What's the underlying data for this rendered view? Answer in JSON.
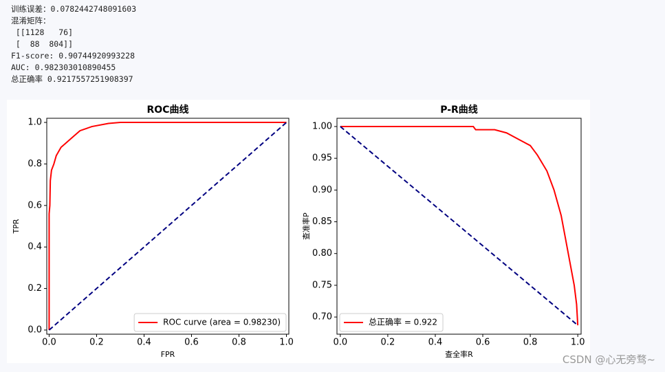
{
  "console": [
    "训练误差：0.0782442748091603",
    "混淆矩阵：",
    " [[1128   76]",
    " [  88  804]]",
    "F1-score: 0.90744920993228",
    "AUC: 0.982303010890455",
    "总正确率 0.9217557251908397"
  ],
  "watermark": "CSDN @心无旁骛~",
  "chart_data": [
    {
      "type": "line",
      "title": "ROC曲线",
      "xlabel": "FPR",
      "ylabel": "TPR",
      "legend": "lower right",
      "xlim": [
        -0.01,
        1.01
      ],
      "ylim": [
        -0.02,
        1.02
      ],
      "xticks": [
        {
          "value": 0,
          "label": "0.0"
        },
        {
          "value": 0.2,
          "label": "0.2"
        },
        {
          "value": 0.4,
          "label": "0.4"
        },
        {
          "value": 0.6,
          "label": "0.6"
        },
        {
          "value": 0.8,
          "label": "0.8"
        },
        {
          "value": 1,
          "label": "1.0"
        }
      ],
      "yticks": [
        {
          "value": 0,
          "label": "0.0"
        },
        {
          "value": 0.2,
          "label": "0.2"
        },
        {
          "value": 0.4,
          "label": "0.4"
        },
        {
          "value": 0.6,
          "label": "0.6"
        },
        {
          "value": 0.8,
          "label": "0.8"
        },
        {
          "value": 1,
          "label": "1.0"
        }
      ],
      "series": [
        {
          "name": "ROC curve (area = 0.98230)",
          "color": "#ff0000",
          "dash": false,
          "x": [
            0,
            0,
            0.003,
            0.005,
            0.01,
            0.02,
            0.03,
            0.05,
            0.07,
            0.1,
            0.13,
            0.18,
            0.25,
            0.3,
            1.0
          ],
          "values": [
            0,
            0.56,
            0.6,
            0.72,
            0.77,
            0.8,
            0.84,
            0.88,
            0.9,
            0.93,
            0.96,
            0.98,
            0.995,
            1.0,
            1.0
          ]
        },
        {
          "color": "#000080",
          "dash": true,
          "x": [
            0,
            1
          ],
          "values": [
            0,
            1
          ]
        }
      ]
    },
    {
      "type": "line",
      "title": "P-R曲线",
      "xlabel": "查全率R",
      "ylabel": "查准率P",
      "legend": "lower left",
      "xlim": [
        -0.014,
        1.014
      ],
      "ylim": [
        0.673,
        1.013
      ],
      "xticks": [
        {
          "value": 0,
          "label": "0.0"
        },
        {
          "value": 0.2,
          "label": "0.2"
        },
        {
          "value": 0.4,
          "label": "0.4"
        },
        {
          "value": 0.6,
          "label": "0.6"
        },
        {
          "value": 0.8,
          "label": "0.8"
        },
        {
          "value": 1,
          "label": "1.0"
        }
      ],
      "yticks": [
        {
          "value": 0.7,
          "label": "0.70"
        },
        {
          "value": 0.75,
          "label": "0.75"
        },
        {
          "value": 0.8,
          "label": "0.80"
        },
        {
          "value": 0.85,
          "label": "0.85"
        },
        {
          "value": 0.9,
          "label": "0.90"
        },
        {
          "value": 0.95,
          "label": "0.95"
        },
        {
          "value": 1,
          "label": "1.00"
        }
      ],
      "series": [
        {
          "name": "总正确率 = 0.922",
          "color": "#ff0000",
          "dash": false,
          "x": [
            0,
            0.56,
            0.57,
            0.65,
            0.7,
            0.75,
            0.8,
            0.83,
            0.87,
            0.9,
            0.93,
            0.95,
            0.97,
            0.985,
            0.995,
            1.0
          ],
          "values": [
            1,
            1,
            0.995,
            0.995,
            0.99,
            0.98,
            0.97,
            0.955,
            0.93,
            0.9,
            0.86,
            0.82,
            0.78,
            0.75,
            0.72,
            0.687
          ]
        },
        {
          "color": "#000080",
          "dash": true,
          "x": [
            0,
            1
          ],
          "values": [
            1,
            0.687
          ]
        }
      ]
    }
  ]
}
